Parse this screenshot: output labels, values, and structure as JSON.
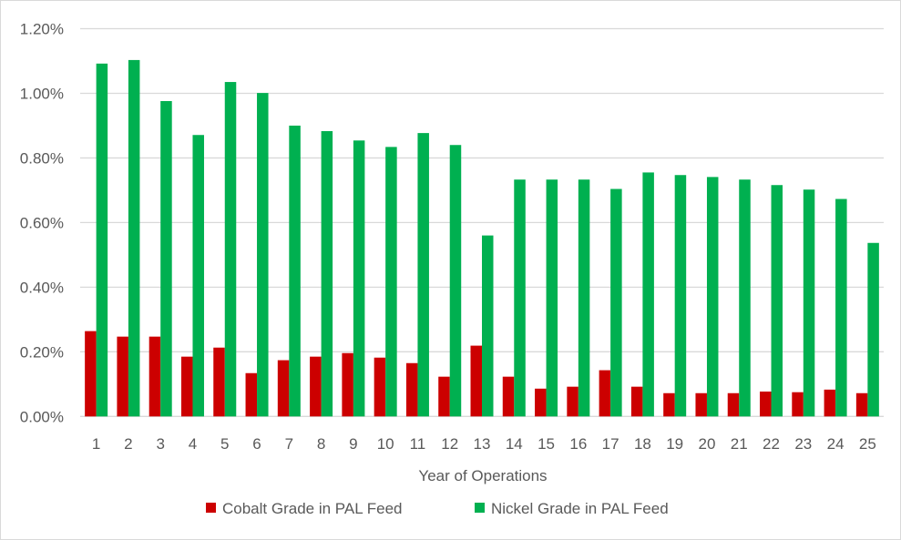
{
  "chart_data": {
    "type": "bar",
    "title": "",
    "xlabel": "Year of Operations",
    "ylabel": "",
    "ylim": [
      0,
      1.2
    ],
    "y_ticks": [
      "0.00%",
      "0.20%",
      "0.40%",
      "0.60%",
      "0.80%",
      "1.00%",
      "1.20%"
    ],
    "y_unit": "%",
    "grid": true,
    "legend_position": "bottom",
    "categories": [
      "1",
      "2",
      "3",
      "4",
      "5",
      "6",
      "7",
      "8",
      "9",
      "10",
      "11",
      "12",
      "13",
      "14",
      "15",
      "16",
      "17",
      "18",
      "19",
      "20",
      "21",
      "22",
      "23",
      "24",
      "25"
    ],
    "series": [
      {
        "name": "Cobalt Grade in PAL Feed",
        "color": "#cc0000",
        "values": [
          0.264,
          0.247,
          0.247,
          0.185,
          0.213,
          0.134,
          0.174,
          0.185,
          0.196,
          0.182,
          0.165,
          0.123,
          0.219,
          0.123,
          0.086,
          0.092,
          0.143,
          0.092,
          0.072,
          0.072,
          0.072,
          0.077,
          0.075,
          0.083,
          0.072
        ]
      },
      {
        "name": "Nickel Grade in PAL Feed",
        "color": "#00b050",
        "values": [
          1.092,
          1.103,
          0.976,
          0.871,
          1.035,
          1.001,
          0.9,
          0.883,
          0.854,
          0.834,
          0.877,
          0.84,
          0.56,
          0.733,
          0.733,
          0.733,
          0.704,
          0.755,
          0.747,
          0.741,
          0.733,
          0.716,
          0.702,
          0.673,
          0.537
        ]
      }
    ]
  }
}
